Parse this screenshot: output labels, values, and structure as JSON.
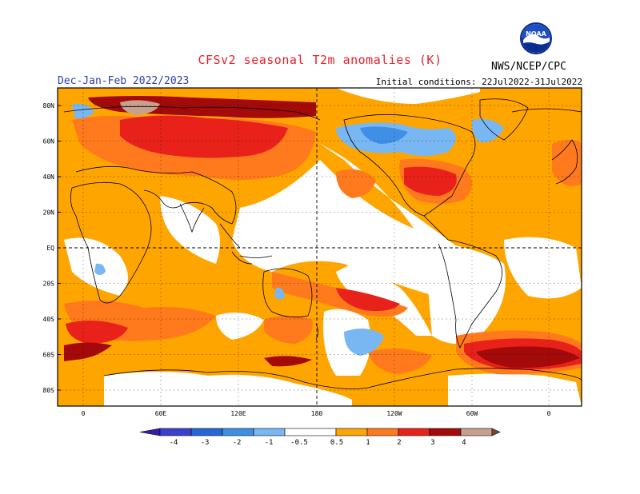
{
  "header": {
    "title": "CFSv2 seasonal T2m anomalies (K)",
    "period": "Dec-Jan-Feb 2022/2023",
    "initial_conditions": "Initial conditions: 22Jul2022-31Jul2022",
    "agency": "NWS/NCEP/CPC",
    "logo_text": "NOAA"
  },
  "axes": {
    "lat_labels": [
      "80N",
      "60N",
      "40N",
      "20N",
      "EQ",
      "20S",
      "40S",
      "60S",
      "80S"
    ],
    "lon_labels": [
      "0",
      "60E",
      "120E",
      "180",
      "120W",
      "60W",
      "0"
    ]
  },
  "colorbar": {
    "tick_labels": [
      "-4",
      "-3",
      "-2",
      "-1",
      "-0.5",
      "0.5",
      "1",
      "2",
      "3",
      "4"
    ],
    "colors": {
      "lt_-4": "#3a1aa8",
      "-4_-3": "#3d3fcf",
      "-3_-2": "#2667d8",
      "-2_-1": "#3f8fe6",
      "-1_-0.5": "#78b7f2",
      "-0.5_0.5": "#ffffff",
      "0.5_1": "#ffa500",
      "1_2": "#ff7a1c",
      "2_3": "#e8221a",
      "3_4": "#a40a0a",
      "4_5": "#c8a08f",
      "gt_5": "#7a4a35"
    }
  }
}
